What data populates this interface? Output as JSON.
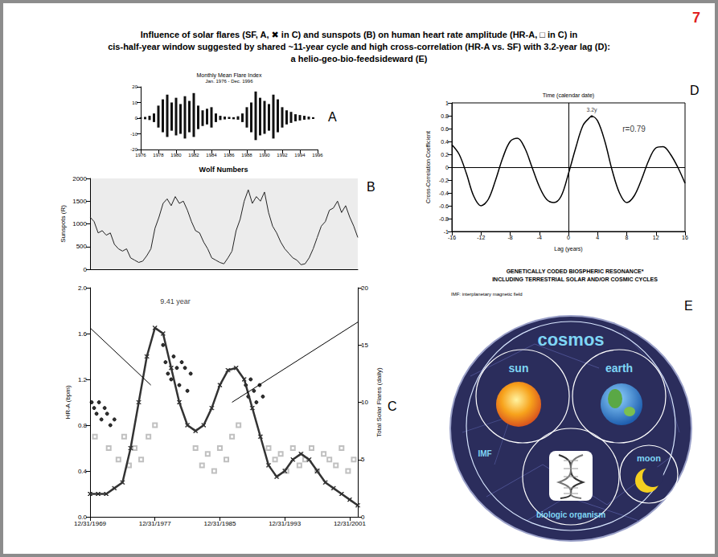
{
  "page_number": "7",
  "title_lines": [
    "Influence of solar flares (SF, A, ✖ in C) and sunspots (B) on human heart rate amplitude (HR-A, □ in C) in",
    "cis-half-year window suggested by shared ~11-year cycle and high cross-correlation (HR-A vs. SF) with 3.2-year lag (D):",
    "a helio-geo-bio-feedsideward (E)"
  ],
  "chart_data": [
    {
      "panel": "A",
      "type": "bar",
      "title": "Monthly Mean Flare Index",
      "subtitle": "Jan. 1976 - Dec. 1996",
      "x": [
        1976,
        1976.5,
        1977,
        1977.5,
        1978,
        1978.5,
        1979,
        1979.5,
        1980,
        1980.5,
        1981,
        1981.5,
        1982,
        1982.5,
        1983,
        1983.5,
        1984,
        1984.5,
        1985,
        1985.5,
        1986,
        1986.5,
        1987,
        1987.5,
        1988,
        1988.5,
        1989,
        1989.5,
        1990,
        1990.5,
        1991,
        1991.5,
        1992,
        1992.5,
        1993,
        1993.5,
        1994,
        1994.5,
        1995,
        1995.5
      ],
      "series": [
        {
          "color": "#111111",
          "values": [
            0.5,
            0.8,
            1.5,
            3,
            8,
            12,
            15,
            10,
            13,
            9,
            14,
            11,
            16,
            8,
            5,
            6,
            7,
            3,
            1.5,
            1,
            0.8,
            0.6,
            1.2,
            3,
            7,
            10,
            17,
            13,
            11,
            9,
            15,
            12,
            7,
            5,
            4,
            2.5,
            2,
            1.5,
            1,
            0.6
          ]
        },
        {
          "color": "#111111",
          "values": [
            -0.4,
            -0.7,
            -1.2,
            -2.5,
            -6,
            -9,
            -12,
            -8,
            -11,
            -10,
            -13,
            -9,
            -12,
            -7,
            -5,
            -4,
            -6,
            -2.5,
            -1.2,
            -0.8,
            -0.5,
            -0.7,
            -1,
            -2.5,
            -6,
            -9,
            -14,
            -11,
            -10,
            -8,
            -13,
            -9,
            -6,
            -4,
            -3,
            -2,
            -1.5,
            -1,
            -0.8,
            -0.5
          ]
        }
      ],
      "xlim": [
        1976,
        1996
      ],
      "xticks": [
        1976,
        1978,
        1980,
        1982,
        1984,
        1986,
        1988,
        1990,
        1992,
        1994,
        1996
      ],
      "ylim": [
        -20,
        20
      ],
      "yticks": [
        -20,
        -10,
        0,
        10,
        20
      ],
      "grid": false
    },
    {
      "panel": "B",
      "type": "line",
      "title": "Wolf Numbers",
      "ylabel": "Sunspots (R)",
      "x": [
        1970,
        1970.5,
        1971,
        1971.5,
        1972,
        1972.5,
        1973,
        1973.5,
        1974,
        1974.5,
        1975,
        1975.5,
        1976,
        1976.5,
        1977,
        1977.5,
        1978,
        1978.5,
        1979,
        1979.5,
        1980,
        1980.5,
        1981,
        1981.5,
        1982,
        1982.5,
        1983,
        1983.5,
        1984,
        1984.5,
        1985,
        1985.5,
        1986,
        1986.5,
        1987,
        1987.5,
        1988,
        1988.5,
        1989,
        1989.5,
        1990,
        1990.5,
        1991,
        1991.5,
        1992,
        1992.5,
        1993,
        1993.5,
        1994,
        1994.5,
        1995,
        1995.5,
        1996,
        1996.5,
        1997,
        1997.5,
        1998,
        1998.5,
        1999,
        1999.5,
        2000,
        2000.5,
        2001,
        2001.5,
        2002,
        2002.5,
        2003
      ],
      "values": [
        1150,
        1050,
        800,
        850,
        750,
        800,
        550,
        450,
        400,
        450,
        250,
        200,
        150,
        180,
        300,
        450,
        900,
        1150,
        1450,
        1550,
        1400,
        1600,
        1450,
        1500,
        1300,
        1050,
        850,
        800,
        600,
        450,
        250,
        200,
        150,
        120,
        250,
        400,
        850,
        1100,
        1500,
        1750,
        1450,
        1600,
        1500,
        1700,
        1250,
        950,
        800,
        600,
        450,
        350,
        250,
        200,
        100,
        120,
        250,
        450,
        700,
        950,
        1050,
        1300,
        1350,
        1500,
        1250,
        1400,
        1150,
        950,
        700
      ],
      "color": "#222222",
      "xlim": [
        1970,
        2003
      ],
      "ylim": [
        0,
        2000
      ],
      "yticks": [
        0,
        500,
        1000,
        1500,
        2000
      ],
      "tick_labels": "y",
      "grid": false
    },
    {
      "panel": "C",
      "type": "scatter",
      "ylabel": "HR-A (bpm)",
      "y2label": "Total Solar Flares (daily)",
      "xlim": [
        1970,
        2003
      ],
      "xticks": [
        {
          "value": 1970,
          "label": "12/31/1969"
        },
        {
          "value": 1978,
          "label": "12/31/1977"
        },
        {
          "value": 1986,
          "label": "12/31/1985"
        },
        {
          "value": 1994,
          "label": "12/31/1993"
        },
        {
          "value": 2002,
          "label": "12/31/2001"
        }
      ],
      "ylim": [
        0,
        2
      ],
      "yticks": [
        {
          "value": 0,
          "label": "0.0"
        },
        0.4,
        0.8,
        1.2,
        1.6,
        {
          "value": 2,
          "label": "2.0"
        }
      ],
      "y2lim": [
        0,
        20
      ],
      "y2ticks": [
        0,
        5,
        10,
        15,
        20
      ],
      "grid": false,
      "annotations": [
        {
          "text": "9.41 year",
          "x": 1980.5,
          "y": 1.88
        }
      ],
      "series": [
        {
          "type": "scatter",
          "marker": "square",
          "color": "#b0b0b0",
          "x": [
            1970.6,
            1972.3,
            1973.5,
            1974.2,
            1974.8,
            1975.5,
            1976.3,
            1977.2,
            1978,
            1983,
            1983.8,
            1984.5,
            1985.3,
            1986,
            1986.8,
            1987.5,
            1988.3,
            1992,
            1992.8,
            1993.5,
            1994.2,
            1995,
            1995.8,
            1996.5,
            1997.3,
            1998,
            1998.8,
            1999.5,
            2000.3,
            2001,
            2001.8,
            2002.5
          ],
          "values": [
            0.7,
            0.6,
            0.5,
            0.7,
            0.45,
            0.6,
            0.5,
            0.7,
            0.8,
            0.6,
            0.45,
            0.55,
            0.4,
            0.6,
            0.5,
            0.7,
            0.8,
            0.6,
            0.5,
            0.55,
            0.4,
            0.6,
            0.45,
            0.5,
            0.6,
            0.4,
            0.55,
            0.5,
            0.45,
            0.6,
            0.4,
            0.5
          ]
        },
        {
          "type": "scatter",
          "marker": "circle",
          "color": "#000000",
          "x": [
            1970.2,
            1970.5,
            1970.8,
            1971.1,
            1971.4,
            1971.8,
            1972.1,
            1972.5,
            1973,
            1979,
            1979.3,
            1979.6,
            1980,
            1980.3,
            1980.7,
            1981,
            1981.3,
            1981.7,
            1982,
            1982.4,
            1989.2,
            1989.5,
            1989.8,
            1990.2,
            1990.5,
            1990.9,
            1991.3
          ],
          "values": [
            1,
            0.95,
            0.9,
            1,
            0.85,
            0.95,
            0.9,
            0.8,
            0.85,
            1.5,
            1.35,
            1.25,
            1.2,
            1.4,
            1.3,
            1.15,
            1.35,
            1.3,
            1.1,
            1.25,
            1.15,
            1.05,
            1.2,
            1.1,
            1,
            1.15,
            1.05
          ]
        },
        {
          "type": "line",
          "marker": "x",
          "color": "#333333",
          "axis": "y2",
          "x": [
            1970,
            1971,
            1972,
            1973,
            1974,
            1975,
            1976,
            1977,
            1978,
            1979,
            1980,
            1981,
            1982,
            1983,
            1984,
            1985,
            1986,
            1987,
            1988,
            1989,
            1990,
            1991,
            1992,
            1993,
            1994,
            1995,
            1996,
            1997,
            1998,
            1999,
            2000,
            2001,
            2002,
            2003
          ],
          "values": [
            2,
            2,
            2,
            2.5,
            3,
            6,
            10,
            14,
            16.5,
            16,
            13,
            10,
            8,
            7.5,
            8,
            9.5,
            11.5,
            12.8,
            13,
            12,
            9.5,
            7,
            4.5,
            3.5,
            4,
            5,
            5.5,
            5,
            4,
            3,
            2.5,
            2,
            1.5,
            1
          ]
        },
        {
          "type": "line",
          "marker": "none",
          "color": "#000000",
          "line_style": "solid",
          "x": [
            1970,
            1977.5
          ],
          "values": [
            1.65,
            1.15
          ]
        },
        {
          "type": "line",
          "marker": "none",
          "color": "#000000",
          "line_style": "solid",
          "x": [
            1987.5,
            2003
          ],
          "values": [
            1.0,
            1.7
          ]
        }
      ]
    },
    {
      "panel": "D",
      "type": "line",
      "title": "Time (calendar date)",
      "xlabel": "Lag (years)",
      "ylabel": "Cross-Correlation Coefficient",
      "x": [
        -16,
        -15,
        -14,
        -13,
        -12,
        -11,
        -10,
        -9,
        -8,
        -7,
        -6,
        -5,
        -4,
        -3,
        -2,
        -1,
        0,
        1,
        2,
        3,
        3.2,
        4,
        5,
        6,
        7,
        8,
        9,
        10,
        11,
        12,
        13,
        14,
        15,
        16
      ],
      "values": [
        0.35,
        0.2,
        -0.1,
        -0.45,
        -0.6,
        -0.5,
        -0.2,
        0.15,
        0.4,
        0.45,
        0.3,
        0,
        -0.3,
        -0.5,
        -0.55,
        -0.45,
        -0.1,
        0.3,
        0.65,
        0.78,
        0.79,
        0.72,
        0.4,
        -0.05,
        -0.4,
        -0.55,
        -0.45,
        -0.2,
        0.1,
        0.3,
        0.32,
        0.2,
        0,
        -0.25
      ],
      "color": "#000000",
      "xlim": [
        -16,
        16
      ],
      "xticks": [
        -16,
        -12,
        -8,
        -4,
        0,
        4,
        8,
        12,
        16
      ],
      "ylim": [
        -1,
        1
      ],
      "yticks": [
        -1,
        -0.8,
        -0.6,
        -0.4,
        -0.2,
        0,
        0.2,
        0.4,
        0.6,
        0.8,
        1
      ],
      "grid": false,
      "reference_lines": [
        {
          "axis": "x",
          "value": 0
        },
        {
          "axis": "y",
          "value": 0
        }
      ],
      "peak": {
        "x": 3.2,
        "y": 0.79,
        "label": "3.2y"
      },
      "annotations": [
        {
          "text": "r=0.79",
          "x": 9,
          "y": 0.6
        }
      ]
    }
  ],
  "diagram": {
    "panel": "E",
    "heading": [
      "GENETICALLY CODED BIOSPHERIC RESONANCE*",
      "INCLUDING TERRESTRIAL SOLAR AND/OR COSMIC CYCLES"
    ],
    "note": "IMF: interplanetary magnetic field",
    "nodes": {
      "cosmos": "cosmos",
      "sun": "sun",
      "earth": "earth",
      "moon": "moon",
      "organism": "biologic organism",
      "imf": "IMF"
    }
  }
}
